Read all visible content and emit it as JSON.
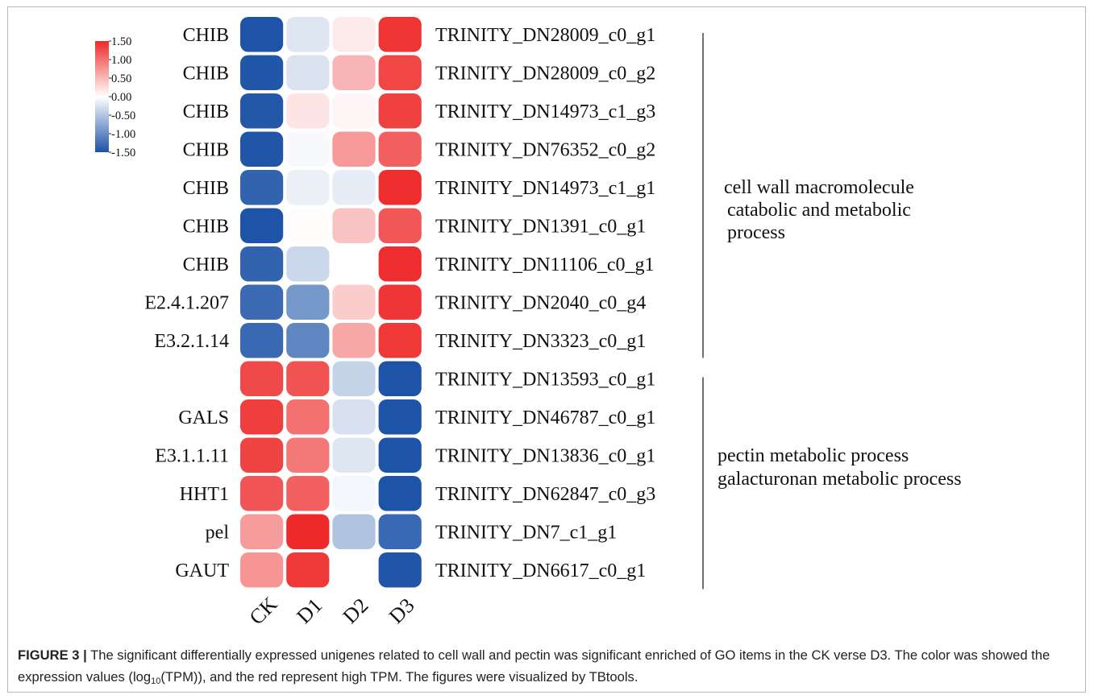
{
  "chart_data": {
    "type": "heatmap",
    "title": "",
    "columns": [
      "CK",
      "D1",
      "D2",
      "D3"
    ],
    "rows": [
      {
        "gene": "CHIB",
        "id": "TRINITY_DN28009_c0_g1",
        "values": [
          -1.48,
          -0.22,
          0.15,
          1.43
        ]
      },
      {
        "gene": "CHIB",
        "id": "TRINITY_DN28009_c0_g2",
        "values": [
          -1.46,
          -0.24,
          0.52,
          1.3
        ]
      },
      {
        "gene": "CHIB",
        "id": "TRINITY_DN14973_c1_g3",
        "values": [
          -1.45,
          0.18,
          0.06,
          1.34
        ]
      },
      {
        "gene": "CHIB",
        "id": "TRINITY_DN76352_c0_g2",
        "values": [
          -1.47,
          -0.05,
          0.72,
          1.12
        ]
      },
      {
        "gene": "CHIB",
        "id": "TRINITY_DN14973_c1_g1",
        "values": [
          -1.35,
          -0.13,
          -0.16,
          1.47
        ]
      },
      {
        "gene": "CHIB",
        "id": "TRINITY_DN1391_c0_g1",
        "values": [
          -1.48,
          0.02,
          0.42,
          1.18
        ]
      },
      {
        "gene": "CHIB",
        "id": "TRINITY_DN11106_c0_g1",
        "values": [
          -1.35,
          -0.34,
          0.0,
          1.47
        ]
      },
      {
        "gene": "E2.4.1.207",
        "id": "TRINITY_DN2040_c0_g4",
        "values": [
          -1.28,
          -0.9,
          0.36,
          1.42
        ]
      },
      {
        "gene": "E3.2.1.14",
        "id": "TRINITY_DN3323_c0_g1",
        "values": [
          -1.3,
          -1.05,
          0.62,
          1.4
        ]
      },
      {
        "gene": "",
        "id": "TRINITY_DN13593_c0_g1",
        "values": [
          1.28,
          1.22,
          -0.38,
          -1.48
        ]
      },
      {
        "gene": "GALS",
        "id": "TRINITY_DN46787_c0_g1",
        "values": [
          1.36,
          1.0,
          -0.26,
          -1.48
        ]
      },
      {
        "gene": "E3.1.1.11",
        "id": "TRINITY_DN13836_c0_g1",
        "values": [
          1.32,
          0.95,
          -0.22,
          -1.48
        ]
      },
      {
        "gene": "HHT1",
        "id": "TRINITY_DN62847_c0_g3",
        "values": [
          1.2,
          1.12,
          -0.08,
          -1.48
        ]
      },
      {
        "gene": "pel",
        "id": "TRINITY_DN7_c1_g1",
        "values": [
          0.7,
          1.5,
          -0.52,
          -1.3
        ]
      },
      {
        "gene": "GAUT",
        "id": "TRINITY_DN6617_c0_g1",
        "values": [
          0.75,
          1.4,
          0.0,
          -1.47
        ]
      }
    ],
    "legend": {
      "ticks": [
        "1.50",
        "1.00",
        "0.50",
        "0.00",
        "-0.50",
        "-1.00",
        "-1.50"
      ],
      "min": -1.5,
      "max": 1.5,
      "placement": "top-left"
    },
    "groups": [
      {
        "lines": [
          "cell wall macromolecule",
          "catabolic and metabolic",
          "process"
        ],
        "first_row": 0,
        "last_row": 8
      },
      {
        "lines": [
          "pectin metabolic process",
          "galacturonan metabolic process"
        ],
        "first_row": 9,
        "last_row": 14
      }
    ],
    "colors": {
      "low": "#1b52a6",
      "mid": "#ffffff",
      "high": "#ee2a2a"
    }
  },
  "caption": {
    "label": "FIGURE 3 |",
    "text_before_sub": " The significant differentially expressed unigenes related to cell wall and pectin was significant enriched of GO items in the CK verse D3. The color was showed the expression values (log",
    "sub": "10",
    "text_after_sub": "(TPM)), and the red represent high TPM. The figures were visualized by TBtools."
  }
}
